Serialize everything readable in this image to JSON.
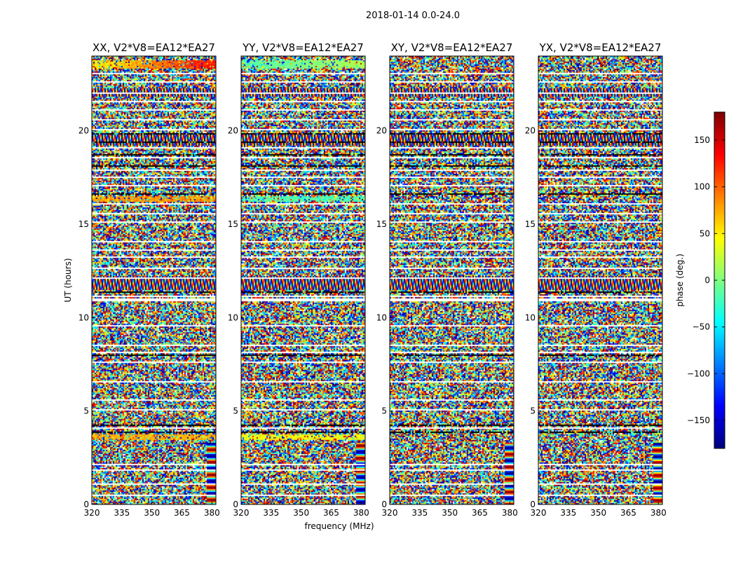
{
  "chart_data": {
    "type": "heatmap",
    "suptitle": "2018-01-14 0.0-24.0",
    "panels": [
      {
        "title": "XX, V2*V8=EA12*EA27",
        "polarization": "XX"
      },
      {
        "title": "YY, V2*V8=EA12*EA27",
        "polarization": "YY"
      },
      {
        "title": "XY, V2*V8=EA12*EA27",
        "polarization": "XY"
      },
      {
        "title": "YX, V2*V8=EA12*EA27",
        "polarization": "YX"
      }
    ],
    "xlabel": "frequency (MHz)",
    "ylabel": "UT (hours)",
    "xlim": [
      320,
      382
    ],
    "ylim": [
      0,
      24
    ],
    "xticks": [
      320,
      335,
      350,
      365,
      380
    ],
    "xtick_labels": [
      "320",
      "335",
      "350",
      "365",
      "380"
    ],
    "yticks": [
      0,
      5,
      10,
      15,
      20
    ],
    "ytick_labels": [
      "0",
      "5",
      "10",
      "15",
      "20"
    ],
    "colorbar": {
      "label": "phase (deg.)",
      "range": [
        -180,
        180
      ],
      "ticks": [
        -150,
        -100,
        -50,
        0,
        50,
        100,
        150
      ],
      "tick_labels": [
        "−150",
        "−100",
        "−50",
        "0",
        "50",
        "100",
        "150"
      ],
      "colormap": "jet"
    },
    "notes": "Visibility phase vs frequency and time; mostly random noise phases with blank (flagged) rows."
  }
}
